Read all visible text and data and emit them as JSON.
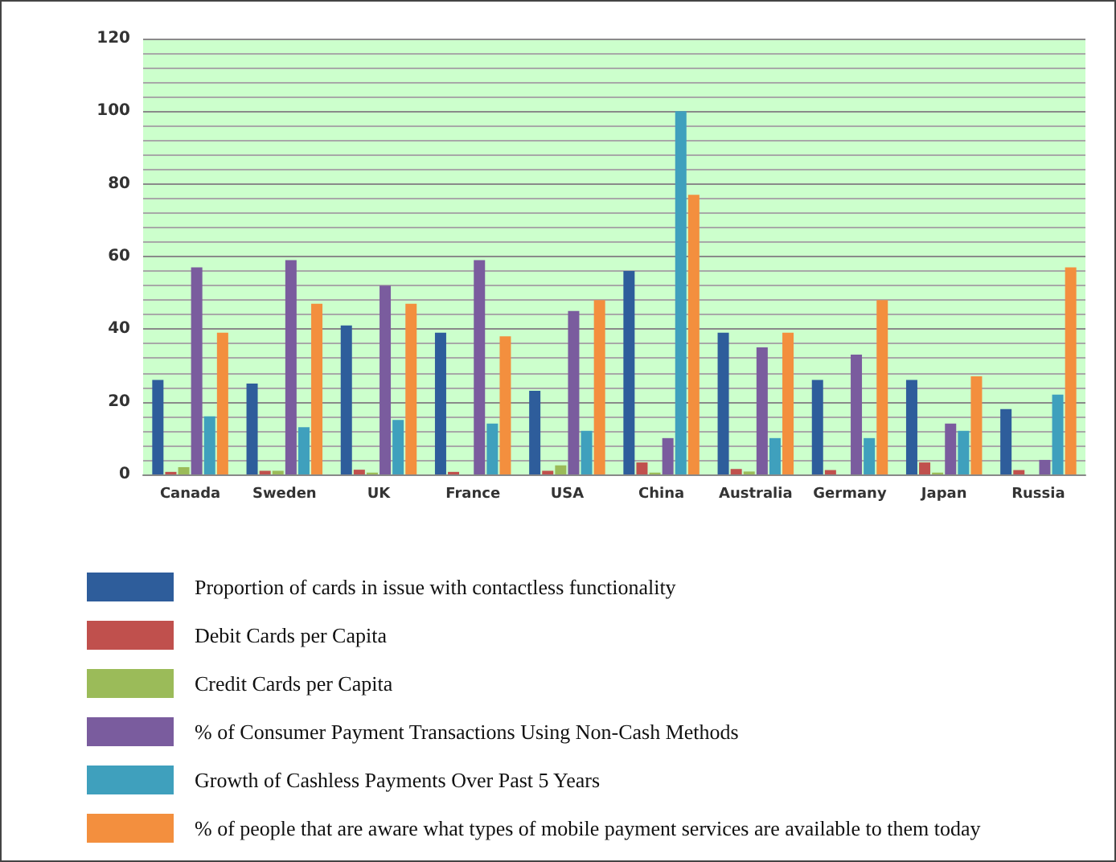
{
  "chart_data": {
    "type": "bar",
    "categories": [
      "Canada",
      "Sweden",
      "UK",
      "France",
      "USA",
      "China",
      "Australia",
      "Germany",
      "Japan",
      "Russia"
    ],
    "series": [
      {
        "name": "Proportion of cards in issue with contactless functionality",
        "color": "#2e5d9b",
        "values": [
          26,
          25,
          41,
          39,
          23,
          56,
          39,
          26,
          26,
          18
        ]
      },
      {
        "name": "Debit Cards per Capita",
        "color": "#c0504d",
        "values": [
          0.7,
          1,
          1.3,
          0.7,
          1,
          3.3,
          1.5,
          1.2,
          3.3,
          1.2
        ]
      },
      {
        "name": "Credit Cards per Capita",
        "color": "#9bbb59",
        "values": [
          2,
          1,
          0.5,
          0,
          2.5,
          0.5,
          0.8,
          0,
          0.5,
          0
        ]
      },
      {
        "name": "% of Consumer Payment Transactions Using Non-Cash Methods",
        "color": "#7a5c9e",
        "values": [
          57,
          59,
          52,
          59,
          45,
          10,
          35,
          33,
          14,
          4
        ]
      },
      {
        "name": "Growth of Cashless Payments Over Past 5 Years",
        "color": "#3fa0bd",
        "values": [
          16,
          13,
          15,
          14,
          12,
          100,
          10,
          10,
          12,
          22
        ]
      },
      {
        "name": "% of people that are aware what types of mobile payment services are available to them today",
        "color": "#f38f3e",
        "values": [
          39,
          47,
          47,
          38,
          48,
          77,
          39,
          48,
          27,
          57
        ]
      }
    ],
    "ylim": [
      0,
      120
    ],
    "yticks": [
      0,
      20,
      40,
      60,
      80,
      100,
      120
    ],
    "grid": "y",
    "legend": "bottom"
  }
}
